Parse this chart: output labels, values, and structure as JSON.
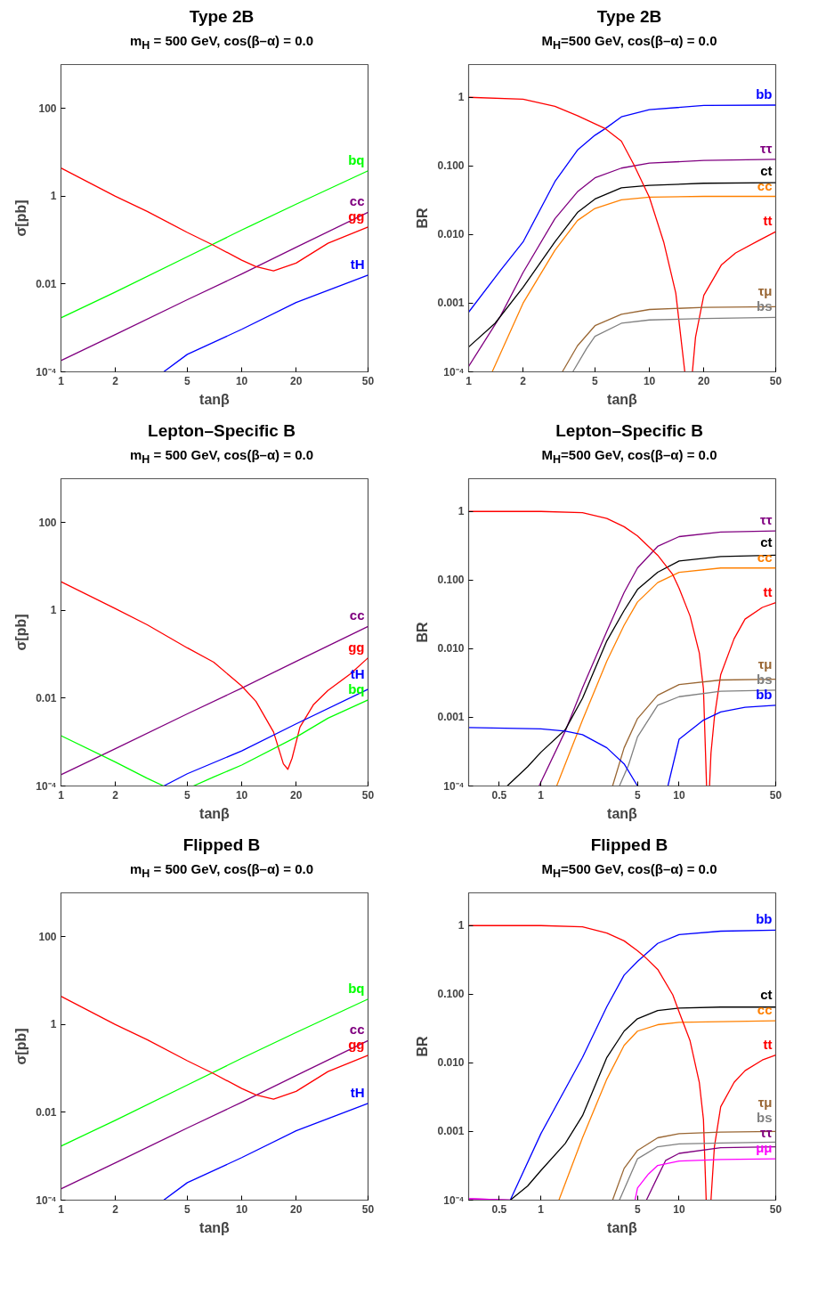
{
  "chart_data": [
    {
      "type": "line",
      "title": "Type 2B",
      "subtitle": "m$_{H}$ = 500 GeV, cos(β–α) = 0.0",
      "xlabel": "tanβ",
      "ylabel": "σ[pb]",
      "log": "xy",
      "xlim": [
        1,
        50
      ],
      "ylim": [
        0.0001,
        1000
      ],
      "xticks": [
        1,
        2,
        5,
        10,
        20,
        50
      ],
      "yticks": [
        {
          "value": 0.0001,
          "label": "10⁻⁴"
        },
        0.01,
        1,
        100
      ],
      "series": [
        {
          "name": "bq",
          "color": "#00ff00",
          "x": [
            1,
            2,
            5,
            10,
            20,
            50
          ],
          "values": [
            0.0017,
            0.0066,
            0.042,
            0.17,
            0.66,
            3.8
          ]
        },
        {
          "name": "cc",
          "color": "#800080",
          "x": [
            1,
            2,
            5,
            10,
            20,
            50
          ],
          "values": [
            0.00018,
            0.00071,
            0.0044,
            0.017,
            0.069,
            0.43
          ]
        },
        {
          "name": "gg",
          "color": "#ff0000",
          "x": [
            1,
            2,
            3,
            5,
            7,
            10,
            12,
            15,
            20,
            30,
            50
          ],
          "values": [
            4.4,
            1.0,
            0.45,
            0.15,
            0.076,
            0.035,
            0.025,
            0.02,
            0.03,
            0.085,
            0.2
          ]
        },
        {
          "name": "tH",
          "color": "#0000ff",
          "x": [
            3.7,
            5,
            10,
            20,
            50
          ],
          "values": [
            0.0001,
            0.00025,
            0.00093,
            0.0038,
            0.016
          ]
        }
      ]
    },
    {
      "type": "line",
      "title": "Type 2B",
      "subtitle": "M$_{H}$=500 GeV, cos(β–α) = 0.0",
      "xlabel": "tanβ",
      "ylabel": "BR",
      "log": "xy",
      "xlim": [
        1,
        50
      ],
      "ylim": [
        0.0001,
        3
      ],
      "xticks": [
        1,
        2,
        5,
        10,
        20,
        50
      ],
      "yticks": [
        {
          "value": 0.0001,
          "label": "10⁻⁴"
        },
        0.001,
        {
          "value": 0.01,
          "label": "0.010"
        },
        {
          "value": 0.1,
          "label": "0.100"
        },
        1
      ],
      "series": [
        {
          "name": "bb",
          "color": "#0000ff",
          "x": [
            1,
            1.5,
            2,
            3,
            4,
            5,
            5.7,
            7,
            10,
            20,
            50
          ],
          "values": [
            0.00074,
            0.003,
            0.0078,
            0.059,
            0.17,
            0.28,
            0.35,
            0.52,
            0.66,
            0.76,
            0.77
          ]
        },
        {
          "name": "ττ",
          "color": "#800080",
          "x": [
            1,
            1.5,
            2,
            3,
            4,
            5,
            7,
            10,
            20,
            50
          ],
          "values": [
            0.00012,
            0.00065,
            0.0028,
            0.017,
            0.042,
            0.067,
            0.093,
            0.11,
            0.12,
            0.125
          ]
        },
        {
          "name": "ct",
          "color": "#000000",
          "x": [
            1,
            1.4,
            2,
            3,
            4,
            5,
            7,
            10,
            20,
            50
          ],
          "values": [
            0.00023,
            0.00051,
            0.0017,
            0.0078,
            0.021,
            0.033,
            0.048,
            0.052,
            0.056,
            0.057
          ]
        },
        {
          "name": "cc",
          "color": "#ff8000",
          "x": [
            1.35,
            2,
            3,
            4,
            5,
            7,
            10,
            20,
            50
          ],
          "values": [
            0.0001,
            0.001,
            0.0059,
            0.016,
            0.024,
            0.032,
            0.035,
            0.036,
            0.036
          ]
        },
        {
          "name": "tt",
          "color": "#ff0000",
          "x": [
            1,
            2,
            3,
            4,
            5.7,
            7,
            8.2,
            10,
            12,
            14,
            15.7,
            16.5,
            17.3,
            18,
            20,
            25,
            30,
            40,
            50
          ],
          "values": [
            1.0,
            0.94,
            0.74,
            0.54,
            0.35,
            0.23,
            0.105,
            0.035,
            0.0078,
            0.0014,
            0.0001,
            null,
            0.0001,
            0.00032,
            0.0013,
            0.0036,
            0.0054,
            0.0081,
            0.011
          ]
        },
        {
          "name": "τμ",
          "color": "#996633",
          "x": [
            3.3,
            4,
            5,
            7,
            10,
            20,
            50
          ],
          "values": [
            0.0001,
            0.00024,
            0.00047,
            0.00069,
            0.00081,
            0.00087,
            0.00089
          ]
        },
        {
          "name": "bs",
          "color": "#808080",
          "x": [
            3.77,
            4.5,
            5,
            7,
            10,
            20,
            50
          ],
          "values": [
            0.0001,
            0.00022,
            0.00033,
            0.00051,
            0.00057,
            0.0006,
            0.00062
          ]
        }
      ]
    },
    {
      "type": "line",
      "title": "Lepton–Specific B",
      "subtitle": "m$_{H}$ = 500 GeV, cos(β–α) = 0.0",
      "xlabel": "tanβ",
      "ylabel": "σ[pb]",
      "log": "xy",
      "xlim": [
        1,
        50
      ],
      "ylim": [
        0.0001,
        1000
      ],
      "xticks": [
        1,
        2,
        5,
        10,
        20,
        50
      ],
      "yticks": [
        {
          "value": 0.0001,
          "label": "10⁻⁴"
        },
        0.01,
        1,
        100
      ],
      "series": [
        {
          "name": "cc",
          "color": "#800080",
          "x": [
            1,
            2,
            5,
            10,
            20,
            50
          ],
          "values": [
            0.00018,
            0.00071,
            0.0044,
            0.017,
            0.069,
            0.43
          ]
        },
        {
          "name": "gg",
          "color": "#ff0000",
          "x": [
            1,
            2,
            3,
            5,
            7,
            10,
            12,
            15,
            17,
            18,
            19,
            21,
            25,
            30,
            40,
            50
          ],
          "values": [
            4.5,
            1.1,
            0.47,
            0.14,
            0.066,
            0.019,
            0.0084,
            0.0017,
            0.00032,
            0.00024,
            0.00043,
            0.0022,
            0.0072,
            0.015,
            0.036,
            0.083
          ]
        },
        {
          "name": "tH",
          "color": "#0000ff",
          "x": [
            3.7,
            5,
            10,
            20,
            50
          ],
          "values": [
            0.0001,
            0.00019,
            0.00063,
            0.0026,
            0.016
          ]
        },
        {
          "name": "bq",
          "color": "#00ff00",
          "x": [
            1,
            2,
            3,
            3.7,
            4.5,
            5.4,
            7,
            10,
            20,
            30,
            50
          ],
          "values": [
            0.0014,
            0.00035,
            0.00015,
            0.0001,
            null,
            0.0001,
            0.00016,
            0.0003,
            0.0013,
            0.0035,
            0.0091
          ]
        }
      ]
    },
    {
      "type": "line",
      "title": "Lepton–Specific B",
      "subtitle": "M$_{H}$=500 GeV, cos(β–α) = 0.0",
      "xlabel": "tanβ",
      "ylabel": "BR",
      "log": "xy",
      "xlim": [
        0.3,
        50
      ],
      "ylim": [
        0.0001,
        3
      ],
      "xticks": [
        0.5,
        1,
        5,
        10,
        50
      ],
      "yticks": [
        {
          "value": 0.0001,
          "label": "10⁻⁴"
        },
        0.001,
        {
          "value": 0.01,
          "label": "0.010"
        },
        {
          "value": 0.1,
          "label": "0.100"
        },
        1
      ],
      "series": [
        {
          "name": "ττ",
          "color": "#800080",
          "x": [
            0.97,
            1.5,
            2,
            3,
            4,
            5,
            7,
            10,
            20,
            50
          ],
          "values": [
            0.0001,
            0.00063,
            0.0027,
            0.018,
            0.066,
            0.15,
            0.31,
            0.43,
            0.5,
            0.52
          ]
        },
        {
          "name": "ct",
          "color": "#000000",
          "x": [
            0.57,
            0.8,
            1,
            1.5,
            2,
            3,
            4,
            5,
            7,
            10,
            20,
            50
          ],
          "values": [
            0.0001,
            0.00019,
            0.00031,
            0.00066,
            0.0019,
            0.013,
            0.036,
            0.073,
            0.13,
            0.19,
            0.22,
            0.23
          ]
        },
        {
          "name": "cc",
          "color": "#ff8000",
          "x": [
            1.3,
            2,
            3,
            4,
            5,
            7,
            10,
            20,
            50
          ],
          "values": [
            0.0001,
            0.00091,
            0.0066,
            0.022,
            0.048,
            0.092,
            0.13,
            0.15,
            0.15
          ]
        },
        {
          "name": "tt",
          "color": "#ff0000",
          "x": [
            0.3,
            1,
            2,
            3,
            4,
            5,
            7,
            9,
            10,
            12,
            14,
            15,
            15.8,
            16.2,
            16.6,
            17,
            18,
            20,
            25,
            30,
            40,
            50
          ],
          "values": [
            1.0,
            1.0,
            0.96,
            0.79,
            0.6,
            0.44,
            0.23,
            0.12,
            0.076,
            0.03,
            0.0087,
            0.0026,
            0.0001,
            null,
            0.0001,
            0.0003,
            0.001,
            0.0042,
            0.014,
            0.027,
            0.04,
            0.047
          ]
        },
        {
          "name": "τμ",
          "color": "#996633",
          "x": [
            3.3,
            4,
            5,
            7,
            10,
            20,
            50
          ],
          "values": [
            0.0001,
            0.00036,
            0.00096,
            0.0021,
            0.003,
            0.0035,
            0.0036
          ]
        },
        {
          "name": "bs",
          "color": "#808080",
          "x": [
            3.7,
            4.3,
            5,
            7,
            10,
            20,
            50
          ],
          "values": [
            0.0001,
            0.0002,
            0.00052,
            0.0015,
            0.002,
            0.0024,
            0.0025
          ]
        },
        {
          "name": "bb",
          "color": "#0000ff",
          "x": [
            0.3,
            1,
            1.5,
            2,
            3,
            4,
            5,
            6.5,
            8.3,
            10,
            15,
            20,
            30,
            50
          ],
          "values": [
            0.00071,
            0.00068,
            0.00063,
            0.00056,
            0.00036,
            0.00021,
            0.0001,
            null,
            0.0001,
            0.00048,
            0.00091,
            0.0012,
            0.0014,
            0.0015
          ]
        }
      ]
    },
    {
      "type": "line",
      "title": "Flipped B",
      "subtitle": "m$_{H}$ = 500 GeV, cos(β–α) = 0.0",
      "xlabel": "tanβ",
      "ylabel": "σ[pb]",
      "log": "xy",
      "xlim": [
        1,
        50
      ],
      "ylim": [
        0.0001,
        1000
      ],
      "xticks": [
        1,
        2,
        5,
        10,
        20,
        50
      ],
      "yticks": [
        {
          "value": 0.0001,
          "label": "10⁻⁴"
        },
        0.01,
        1,
        100
      ],
      "series": [
        {
          "name": "bq",
          "color": "#00ff00",
          "x": [
            1,
            2,
            5,
            10,
            20,
            50
          ],
          "values": [
            0.0017,
            0.0066,
            0.042,
            0.17,
            0.66,
            3.8
          ]
        },
        {
          "name": "cc",
          "color": "#800080",
          "x": [
            1,
            2,
            5,
            10,
            20,
            50
          ],
          "values": [
            0.00018,
            0.00071,
            0.0044,
            0.017,
            0.069,
            0.43
          ]
        },
        {
          "name": "gg",
          "color": "#ff0000",
          "x": [
            1,
            2,
            3,
            5,
            7,
            10,
            12,
            15,
            20,
            30,
            50
          ],
          "values": [
            4.4,
            1.0,
            0.45,
            0.15,
            0.076,
            0.035,
            0.025,
            0.02,
            0.03,
            0.085,
            0.2
          ]
        },
        {
          "name": "tH",
          "color": "#0000ff",
          "x": [
            3.7,
            5,
            10,
            20,
            50
          ],
          "values": [
            0.0001,
            0.00025,
            0.00093,
            0.0038,
            0.016
          ]
        }
      ]
    },
    {
      "type": "line",
      "title": "Flipped B",
      "subtitle": "M$_{H}$=500 GeV, cos(β–α) = 0.0",
      "xlabel": "tanβ",
      "ylabel": "BR",
      "log": "xy",
      "xlim": [
        0.3,
        50
      ],
      "ylim": [
        0.0001,
        3
      ],
      "xticks": [
        0.5,
        1,
        5,
        10,
        50
      ],
      "yticks": [
        {
          "value": 0.0001,
          "label": "10⁻⁴"
        },
        0.001,
        {
          "value": 0.01,
          "label": "0.010"
        },
        {
          "value": 0.1,
          "label": "0.100"
        },
        1
      ],
      "series": [
        {
          "name": "bb",
          "color": "#0000ff",
          "x": [
            0.6,
            1,
            2,
            3,
            4,
            5,
            7,
            10,
            20,
            50
          ],
          "values": [
            0.0001,
            0.00093,
            0.012,
            0.066,
            0.19,
            0.3,
            0.55,
            0.74,
            0.83,
            0.86
          ]
        },
        {
          "name": "ct",
          "color": "#000000",
          "x": [
            0.6,
            0.8,
            1,
            1.5,
            2,
            3,
            4,
            5,
            7,
            10,
            20,
            50
          ],
          "values": [
            0.0001,
            0.00016,
            0.00027,
            0.00067,
            0.0017,
            0.012,
            0.029,
            0.044,
            0.058,
            0.063,
            0.065,
            0.065
          ]
        },
        {
          "name": "cc",
          "color": "#ff8000",
          "x": [
            1.35,
            2,
            3,
            4,
            5,
            7,
            10,
            50
          ],
          "values": [
            0.0001,
            0.00081,
            0.0058,
            0.018,
            0.029,
            0.036,
            0.039,
            0.041
          ]
        },
        {
          "name": "tt",
          "color": "#ff0000",
          "x": [
            0.3,
            1,
            2,
            3,
            4,
            5,
            5.65,
            7,
            9,
            10,
            12,
            14,
            15,
            15.7,
            16.3,
            17,
            18,
            20,
            25,
            30,
            40,
            50
          ],
          "values": [
            1.0,
            1.0,
            0.96,
            0.78,
            0.6,
            0.43,
            0.35,
            0.23,
            0.098,
            0.055,
            0.021,
            0.0052,
            0.0015,
            0.0001,
            null,
            0.0001,
            0.0006,
            0.0023,
            0.0052,
            0.0077,
            0.011,
            0.013
          ]
        },
        {
          "name": "bs",
          "color": "#808080",
          "x": [
            3.7,
            5,
            7,
            10,
            20,
            50
          ],
          "values": [
            0.0001,
            0.0004,
            0.0006,
            0.00066,
            0.00068,
            0.0007
          ]
        },
        {
          "name": "τμ",
          "color": "#996633",
          "x": [
            3.3,
            4,
            5,
            7,
            10,
            20,
            50
          ],
          "values": [
            0.0001,
            0.00029,
            0.00053,
            0.00081,
            0.00093,
            0.00098,
            0.001
          ]
        },
        {
          "name": "ττ",
          "color": "#800080",
          "x": [
            0.3,
            0.6,
            3,
            5.8,
            7,
            8,
            10,
            20,
            50
          ],
          "values": [
            0.000105,
            0.0001,
            null,
            0.0001,
            0.00022,
            0.00038,
            0.00048,
            0.00058,
            0.0006
          ]
        },
        {
          "name": "μμ",
          "color": "#ff00ff",
          "x": [
            0.3,
            0.6,
            2,
            4.8,
            5,
            6,
            7,
            10,
            20,
            50
          ],
          "values": [
            0.000105,
            0.0001,
            null,
            0.0001,
            0.00015,
            0.00024,
            0.00032,
            0.00037,
            0.00039,
            0.0004
          ]
        }
      ]
    }
  ]
}
